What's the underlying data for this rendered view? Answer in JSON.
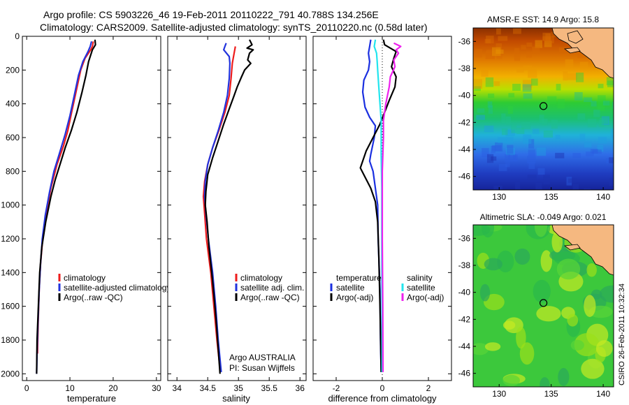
{
  "figure": {
    "title_line1": "Argo profile: CS 5903226_46 19-Feb-2011 20110222_791 40.788S 134.256E",
    "title_line2": "Climatology: CARS2009. Satellite-adjusted climatology: synTS_20110220.nc (0.58d later)",
    "footer_vertical": "CSIRO 26-Feb-2011 10:32:34",
    "argo_info_1": "Argo AUSTRALIA",
    "argo_info_2": "PI: Susan Wijffels"
  },
  "colors": {
    "climatology": "#ee1c1c",
    "satellite": "#2233dd",
    "argo": "#000000",
    "temp_sat": "#1a2fe0",
    "sal_sat": "#22e5ee",
    "sal_argo": "#ee22ee",
    "land": "#f5b880"
  },
  "chart_data": [
    {
      "id": "temperature",
      "type": "line",
      "xlabel": "temperature",
      "ylabel": "",
      "xlim": [
        -1,
        31
      ],
      "ylim": [
        2040,
        0
      ],
      "xticks": [
        0,
        10,
        20,
        30
      ],
      "yticks": [
        0,
        200,
        400,
        600,
        800,
        1000,
        1200,
        1400,
        1600,
        1800,
        2000
      ],
      "legend_placement": "lower-middle",
      "series": [
        {
          "name": "climatology",
          "color_key": "climatology",
          "points": [
            [
              15.4,
              30
            ],
            [
              15.2,
              60
            ],
            [
              14.8,
              80
            ],
            [
              13.5,
              130
            ],
            [
              12.5,
              200
            ],
            [
              11.5,
              320
            ],
            [
              10.4,
              450
            ],
            [
              9.5,
              560
            ],
            [
              8.5,
              650
            ],
            [
              7.0,
              760
            ],
            [
              5.6,
              900
            ],
            [
              4.5,
              1050
            ],
            [
              3.7,
              1200
            ],
            [
              3.2,
              1350
            ],
            [
              2.9,
              1500
            ],
            [
              2.65,
              1700
            ],
            [
              2.5,
              1880
            ]
          ]
        },
        {
          "name": "satellite-adjusted climatology",
          "color_key": "satellite",
          "points": [
            [
              15.0,
              30
            ],
            [
              14.7,
              60
            ],
            [
              14.2,
              90
            ],
            [
              13.0,
              150
            ],
            [
              12.0,
              230
            ],
            [
              11.0,
              350
            ],
            [
              10.0,
              470
            ],
            [
              8.9,
              580
            ],
            [
              7.5,
              700
            ],
            [
              6.3,
              800
            ],
            [
              5.3,
              920
            ],
            [
              4.3,
              1060
            ],
            [
              3.6,
              1200
            ],
            [
              3.2,
              1350
            ],
            [
              2.9,
              1500
            ],
            [
              2.6,
              1700
            ],
            [
              2.4,
              1880
            ],
            [
              2.3,
              2000
            ]
          ]
        },
        {
          "name": "Argo(..raw -QC)",
          "color_key": "argo",
          "points": [
            [
              15.8,
              20
            ],
            [
              15.9,
              50
            ],
            [
              15.2,
              80
            ],
            [
              14.3,
              150
            ],
            [
              13.7,
              230
            ],
            [
              12.8,
              330
            ],
            [
              11.6,
              450
            ],
            [
              10.3,
              560
            ],
            [
              8.9,
              660
            ],
            [
              7.7,
              760
            ],
            [
              6.6,
              850
            ],
            [
              5.6,
              950
            ],
            [
              4.4,
              1100
            ],
            [
              3.5,
              1250
            ],
            [
              3.0,
              1400
            ],
            [
              2.7,
              1600
            ],
            [
              2.4,
              1800
            ],
            [
              2.3,
              2000
            ]
          ]
        }
      ]
    },
    {
      "id": "salinity",
      "type": "line",
      "xlabel": "salinity",
      "ylabel": "",
      "xlim": [
        33.85,
        36.1
      ],
      "ylim": [
        2040,
        0
      ],
      "xticks": [
        34,
        34.5,
        35,
        35.5,
        36
      ],
      "yticks": [
        0,
        200,
        400,
        600,
        800,
        1000,
        1200,
        1400,
        1600,
        1800,
        2000
      ],
      "legend_placement": "lower-middle",
      "series": [
        {
          "name": "climatology",
          "color_key": "climatology",
          "points": [
            [
              34.95,
              60
            ],
            [
              34.93,
              100
            ],
            [
              34.9,
              160
            ],
            [
              34.88,
              250
            ],
            [
              34.85,
              350
            ],
            [
              34.78,
              450
            ],
            [
              34.68,
              560
            ],
            [
              34.58,
              660
            ],
            [
              34.5,
              760
            ],
            [
              34.45,
              860
            ],
            [
              34.43,
              950
            ],
            [
              34.45,
              1050
            ],
            [
              34.48,
              1200
            ],
            [
              34.55,
              1400
            ],
            [
              34.6,
              1600
            ],
            [
              34.65,
              1800
            ],
            [
              34.7,
              1970
            ]
          ]
        },
        {
          "name": "satellite adj. clim.",
          "color_key": "satellite",
          "points": [
            [
              34.8,
              40
            ],
            [
              34.78,
              60
            ],
            [
              34.76,
              80
            ],
            [
              34.85,
              120
            ],
            [
              34.86,
              160
            ],
            [
              34.85,
              250
            ],
            [
              34.82,
              350
            ],
            [
              34.76,
              450
            ],
            [
              34.67,
              560
            ],
            [
              34.58,
              660
            ],
            [
              34.5,
              760
            ],
            [
              34.46,
              860
            ],
            [
              34.45,
              950
            ],
            [
              34.47,
              1050
            ],
            [
              34.51,
              1200
            ],
            [
              34.58,
              1400
            ],
            [
              34.63,
              1600
            ],
            [
              34.67,
              1800
            ],
            [
              34.72,
              1990
            ]
          ]
        },
        {
          "name": "Argo(..raw -QC)",
          "color_key": "argo",
          "points": [
            [
              35.18,
              20
            ],
            [
              35.22,
              50
            ],
            [
              35.14,
              70
            ],
            [
              35.24,
              80
            ],
            [
              35.18,
              100
            ],
            [
              35.15,
              140
            ],
            [
              35.2,
              160
            ],
            [
              35.1,
              200
            ],
            [
              35.05,
              240
            ],
            [
              34.98,
              300
            ],
            [
              34.92,
              360
            ],
            [
              34.85,
              430
            ],
            [
              34.76,
              520
            ],
            [
              34.67,
              620
            ],
            [
              34.58,
              720
            ],
            [
              34.5,
              820
            ],
            [
              34.47,
              920
            ],
            [
              34.46,
              1000
            ],
            [
              34.49,
              1100
            ],
            [
              34.52,
              1250
            ],
            [
              34.58,
              1450
            ],
            [
              34.63,
              1650
            ],
            [
              34.67,
              1850
            ],
            [
              34.7,
              2000
            ]
          ]
        }
      ]
    },
    {
      "id": "difference",
      "type": "line",
      "xlabel": "difference from climatology",
      "ylabel": "",
      "xlim": [
        -3,
        3
      ],
      "ylim": [
        2040,
        0
      ],
      "xticks": [
        -2,
        0,
        2
      ],
      "yticks": [
        0,
        200,
        400,
        600,
        800,
        1000,
        1200,
        1400,
        1600,
        1800,
        2000
      ],
      "legend_placement": "lower-middle",
      "legend_headers": [
        "temperature",
        "salinity"
      ],
      "series": [
        {
          "name": "satellite",
          "group": "temperature",
          "color_key": "temp_sat",
          "points": [
            [
              -0.5,
              20
            ],
            [
              -0.55,
              60
            ],
            [
              -0.6,
              100
            ],
            [
              -0.55,
              150
            ],
            [
              -0.6,
              200
            ],
            [
              -0.8,
              260
            ],
            [
              -0.85,
              330
            ],
            [
              -0.75,
              420
            ],
            [
              -0.55,
              480
            ],
            [
              -0.3,
              530
            ],
            [
              -0.35,
              600
            ],
            [
              -0.5,
              700
            ],
            [
              -0.55,
              740
            ],
            [
              -0.4,
              800
            ],
            [
              -0.3,
              900
            ],
            [
              -0.2,
              1000
            ],
            [
              -0.18,
              1200
            ],
            [
              -0.1,
              1500
            ],
            [
              -0.08,
              1800
            ],
            [
              -0.05,
              1990
            ]
          ]
        },
        {
          "name": "Argo(-adj)",
          "group": "temperature",
          "color_key": "argo",
          "points": [
            [
              0.05,
              20
            ],
            [
              0.1,
              50
            ],
            [
              0.6,
              90
            ],
            [
              0.5,
              130
            ],
            [
              0.4,
              180
            ],
            [
              0.6,
              240
            ],
            [
              0.55,
              300
            ],
            [
              0.3,
              380
            ],
            [
              0.1,
              450
            ],
            [
              -0.1,
              520
            ],
            [
              -0.4,
              600
            ],
            [
              -0.7,
              680
            ],
            [
              -0.95,
              780
            ],
            [
              -0.65,
              860
            ],
            [
              -0.5,
              900
            ],
            [
              -0.3,
              980
            ],
            [
              -0.2,
              1100
            ],
            [
              -0.15,
              1300
            ],
            [
              -0.1,
              1600
            ],
            [
              -0.05,
              1990
            ]
          ]
        },
        {
          "name": "satellite",
          "group": "salinity",
          "color_key": "sal_sat",
          "points": [
            [
              -0.3,
              20
            ],
            [
              -0.35,
              60
            ],
            [
              -0.25,
              100
            ],
            [
              -0.22,
              150
            ],
            [
              -0.2,
              200
            ],
            [
              -0.15,
              300
            ],
            [
              -0.1,
              400
            ],
            [
              -0.05,
              500
            ],
            [
              -0.05,
              700
            ],
            [
              -0.02,
              900
            ],
            [
              -0.02,
              1300
            ],
            [
              -0.01,
              1700
            ],
            [
              -0.01,
              1990
            ]
          ]
        },
        {
          "name": "Argo(-adj)",
          "group": "salinity",
          "color_key": "sal_argo",
          "points": [
            [
              0.5,
              40
            ],
            [
              0.8,
              60
            ],
            [
              0.6,
              80
            ],
            [
              0.7,
              100
            ],
            [
              0.5,
              140
            ],
            [
              0.55,
              180
            ],
            [
              0.35,
              240
            ],
            [
              0.3,
              300
            ],
            [
              0.15,
              400
            ],
            [
              0.05,
              500
            ],
            [
              0.05,
              600
            ],
            [
              0.0,
              800
            ],
            [
              0.0,
              1200
            ],
            [
              0.02,
              1600
            ],
            [
              0.03,
              1990
            ]
          ]
        }
      ]
    },
    {
      "id": "amsr_sst",
      "type": "heatmap",
      "title": "AMSR-E SST: 14.9 Argo: 15.8",
      "xlim": [
        127.5,
        141
      ],
      "ylim": [
        -47,
        -35
      ],
      "xticks": [
        130,
        135,
        140
      ],
      "yticks": [
        -36,
        -38,
        -40,
        -42,
        -44,
        -46
      ],
      "marker": {
        "lon": 134.256,
        "lat": -40.788
      }
    },
    {
      "id": "altimetric_sla",
      "type": "heatmap",
      "title": "Altimetric SLA: -0.049 Argo: 0.021",
      "xlim": [
        127.5,
        141
      ],
      "ylim": [
        -47,
        -35
      ],
      "xticks": [
        130,
        135,
        140
      ],
      "yticks": [
        -36,
        -38,
        -40,
        -42,
        -44,
        -46
      ],
      "marker": {
        "lon": 134.256,
        "lat": -40.788
      }
    }
  ]
}
